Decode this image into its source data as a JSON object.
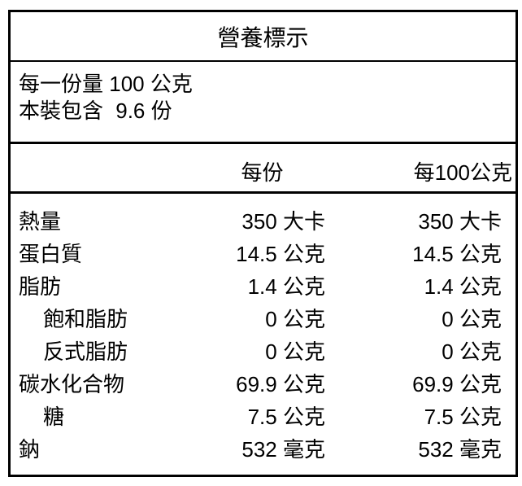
{
  "label": {
    "title": "營養標示",
    "serving_info": {
      "serving_size": {
        "label": "每一份量",
        "value": "100",
        "unit": "公克"
      },
      "servings_per_package": {
        "label": "本裝包含",
        "value": "9.6",
        "unit": "份"
      }
    },
    "columns": {
      "per_serving": "每份",
      "per_100g": "每100公克"
    },
    "rows": [
      {
        "name": "熱量",
        "indent": false,
        "ps_value": "350",
        "ps_unit": "大卡",
        "pg_value": "350",
        "pg_unit": "大卡"
      },
      {
        "name": "蛋白質",
        "indent": false,
        "ps_value": "14.5",
        "ps_unit": "公克",
        "pg_value": "14.5",
        "pg_unit": "公克"
      },
      {
        "name": "脂肪",
        "indent": false,
        "ps_value": "1.4",
        "ps_unit": "公克",
        "pg_value": "1.4",
        "pg_unit": "公克"
      },
      {
        "name": "飽和脂肪",
        "indent": true,
        "ps_value": "0",
        "ps_unit": "公克",
        "pg_value": "0",
        "pg_unit": "公克"
      },
      {
        "name": "反式脂肪",
        "indent": true,
        "ps_value": "0",
        "ps_unit": "公克",
        "pg_value": "0",
        "pg_unit": "公克"
      },
      {
        "name": "碳水化合物",
        "indent": false,
        "ps_value": "69.9",
        "ps_unit": "公克",
        "pg_value": "69.9",
        "pg_unit": "公克"
      },
      {
        "name": "糖",
        "indent": true,
        "ps_value": "7.5",
        "ps_unit": "公克",
        "pg_value": "7.5",
        "pg_unit": "公克"
      },
      {
        "name": "鈉",
        "indent": false,
        "ps_value": "532",
        "ps_unit": "毫克",
        "pg_value": "532",
        "pg_unit": "毫克"
      }
    ]
  },
  "colors": {
    "border": "#000000",
    "text": "#000000",
    "background": "#ffffff"
  }
}
